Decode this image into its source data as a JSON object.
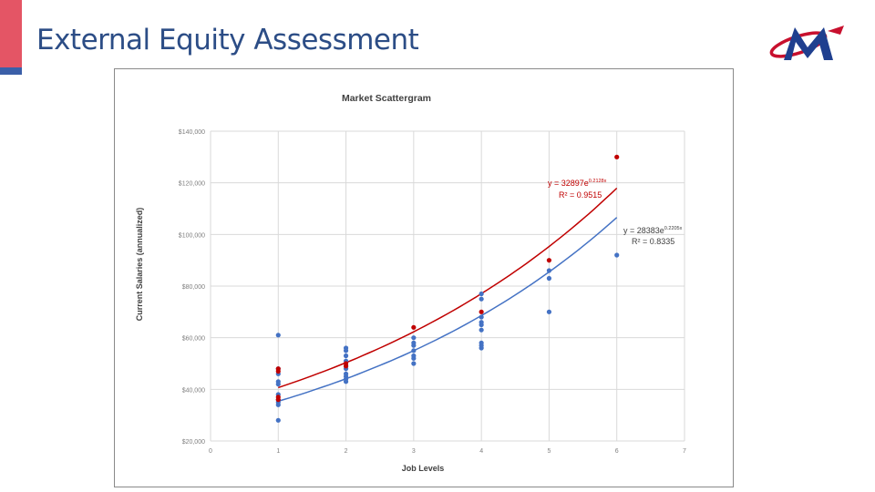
{
  "slide": {
    "title": "External Equity Assessment",
    "accent_color": "#e45565",
    "title_color": "#2c4d86"
  },
  "logo": {
    "icon": "company-logo-m",
    "colors": [
      "#c8102e",
      "#1f3f8f"
    ]
  },
  "chart_data": {
    "type": "scatter",
    "title": "Market Scattergram",
    "xlabel": "Job Levels",
    "ylabel": "Current Salaries (annualized)",
    "xlim": [
      0,
      7
    ],
    "ylim": [
      20000,
      140000
    ],
    "x_ticks": [
      "0",
      "1",
      "2",
      "3",
      "4",
      "5",
      "6",
      "7"
    ],
    "y_ticks": [
      "$20,000",
      "$40,000",
      "$60,000",
      "$80,000",
      "$100,000",
      "$120,000",
      "$140,000"
    ],
    "grid": true,
    "series": [
      {
        "color": "#4472c4",
        "points": [
          [
            1,
            61000
          ],
          [
            1,
            48000
          ],
          [
            1,
            46000
          ],
          [
            1,
            43000
          ],
          [
            1,
            42000
          ],
          [
            1,
            38000
          ],
          [
            1,
            36000
          ],
          [
            1,
            35000
          ],
          [
            1,
            34000
          ],
          [
            1,
            28000
          ],
          [
            2,
            56000
          ],
          [
            2,
            55000
          ],
          [
            2,
            53000
          ],
          [
            2,
            51000
          ],
          [
            2,
            49000
          ],
          [
            2,
            48000
          ],
          [
            2,
            46000
          ],
          [
            2,
            45000
          ],
          [
            2,
            44000
          ],
          [
            2,
            43000
          ],
          [
            3,
            60000
          ],
          [
            3,
            58000
          ],
          [
            3,
            57000
          ],
          [
            3,
            55000
          ],
          [
            3,
            53000
          ],
          [
            3,
            52000
          ],
          [
            3,
            50000
          ],
          [
            4,
            77000
          ],
          [
            4,
            75000
          ],
          [
            4,
            68000
          ],
          [
            4,
            66000
          ],
          [
            4,
            65000
          ],
          [
            4,
            63000
          ],
          [
            4,
            58000
          ],
          [
            4,
            57000
          ],
          [
            4,
            56000
          ],
          [
            5,
            86000
          ],
          [
            5,
            83000
          ],
          [
            5,
            70000
          ],
          [
            6,
            92000
          ]
        ],
        "trendline": {
          "type": "exponential",
          "a": 28383,
          "b": 0.2205
        },
        "equation": "y = 28383e",
        "equation_exp": "0.2205x",
        "r2": "R² = 0.8335"
      },
      {
        "color": "#c00000",
        "points": [
          [
            1,
            48000
          ],
          [
            1,
            47000
          ],
          [
            1,
            37000
          ],
          [
            1,
            36000
          ],
          [
            2,
            50000
          ],
          [
            2,
            49000
          ],
          [
            3,
            64000
          ],
          [
            4,
            70000
          ],
          [
            5,
            90000
          ],
          [
            6,
            130000
          ]
        ],
        "trendline": {
          "type": "exponential",
          "a": 32897,
          "b": 0.2128
        },
        "equation": "y = 32897e",
        "equation_exp": "0.2128x",
        "r2": "R² = 0.9515"
      }
    ]
  }
}
